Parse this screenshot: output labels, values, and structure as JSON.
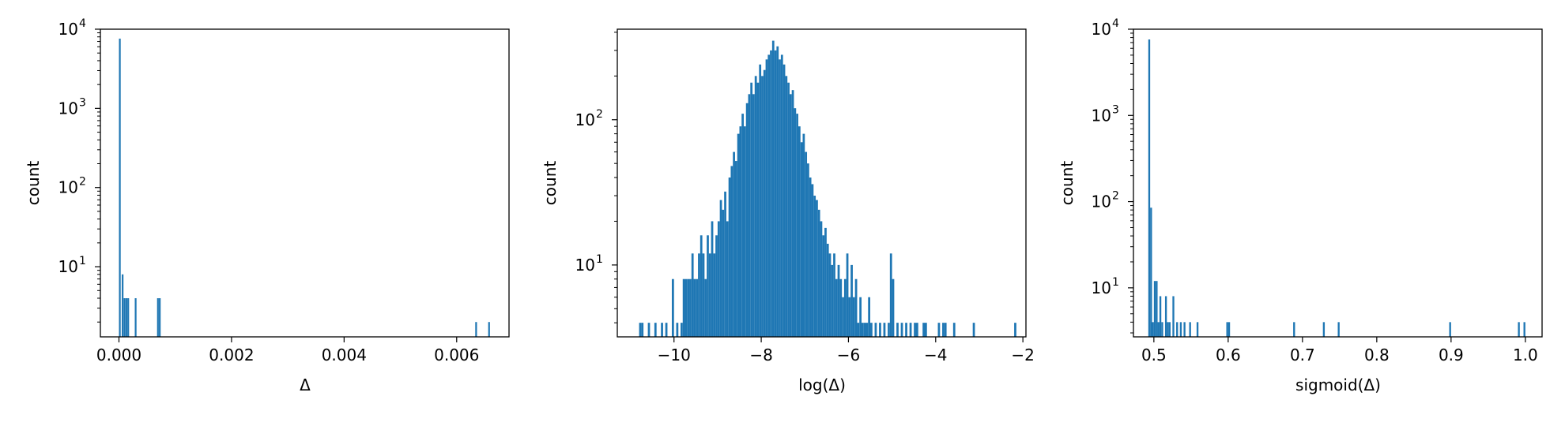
{
  "chart_data": [
    {
      "type": "bar",
      "xlabel": "Δ",
      "ylabel": "count",
      "yscale": "log",
      "xlim": [
        -0.00033,
        0.00693
      ],
      "ylim": [
        1.3,
        10000
      ],
      "xticks": [
        {
          "value": 0.0,
          "label": "0.000"
        },
        {
          "value": 0.002,
          "label": "0.002"
        },
        {
          "value": 0.004,
          "label": "0.004"
        },
        {
          "value": 0.006,
          "label": "0.006"
        }
      ],
      "yticks": [
        {
          "value": 10,
          "base": "10",
          "exp": "1"
        },
        {
          "value": 100,
          "base": "10",
          "exp": "2"
        },
        {
          "value": 1000,
          "base": "10",
          "exp": "3"
        },
        {
          "value": 10000,
          "base": "10",
          "exp": "4"
        }
      ],
      "bins": {
        "x": [
          0.0,
          4.95e-05,
          8.3e-05,
          0.000116,
          0.000149,
          0.000281,
          0.000677,
          0.00071,
          0.00633,
          0.00656
        ],
        "counts": [
          7600,
          8,
          4,
          4,
          4,
          4,
          4,
          4,
          2,
          2
        ]
      },
      "grid": false,
      "color": "#1f77b4"
    },
    {
      "type": "bar",
      "xlabel": "log(Δ)",
      "ylabel": "count",
      "yscale": "log",
      "xlim": [
        -11.3,
        -1.93
      ],
      "ylim": [
        3.2,
        420
      ],
      "xticks": [
        {
          "value": -10,
          "label": "−10"
        },
        {
          "value": -8,
          "label": "−8"
        },
        {
          "value": -6,
          "label": "−6"
        },
        {
          "value": -4,
          "label": "−4"
        },
        {
          "value": -2,
          "label": "−2"
        }
      ],
      "yticks": [
        {
          "value": 10,
          "base": "10",
          "exp": "1"
        },
        {
          "value": 100,
          "base": "10",
          "exp": "2"
        }
      ],
      "bins": {
        "x": [
          -10.8,
          -10.75,
          -10.6,
          -10.45,
          -10.3,
          -10.2,
          -10.05,
          -9.95,
          -9.85,
          -9.8,
          -9.75,
          -9.7,
          -9.65,
          -9.6,
          -9.55,
          -9.5,
          -9.45,
          -9.4,
          -9.35,
          -9.3,
          -9.25,
          -9.2,
          -9.15,
          -9.1,
          -9.05,
          -9.0,
          -8.95,
          -8.9,
          -8.85,
          -8.8,
          -8.75,
          -8.7,
          -8.65,
          -8.6,
          -8.55,
          -8.5,
          -8.45,
          -8.4,
          -8.35,
          -8.3,
          -8.25,
          -8.2,
          -8.15,
          -8.1,
          -8.05,
          -8.0,
          -7.95,
          -7.9,
          -7.85,
          -7.8,
          -7.75,
          -7.7,
          -7.65,
          -7.6,
          -7.55,
          -7.5,
          -7.45,
          -7.4,
          -7.35,
          -7.3,
          -7.25,
          -7.2,
          -7.15,
          -7.1,
          -7.05,
          -7.0,
          -6.95,
          -6.9,
          -6.85,
          -6.8,
          -6.75,
          -6.7,
          -6.65,
          -6.6,
          -6.55,
          -6.5,
          -6.45,
          -6.4,
          -6.35,
          -6.3,
          -6.25,
          -6.2,
          -6.15,
          -6.1,
          -6.05,
          -6.0,
          -5.95,
          -5.9,
          -5.85,
          -5.8,
          -5.75,
          -5.7,
          -5.65,
          -5.6,
          -5.55,
          -5.5,
          -5.4,
          -5.3,
          -5.2,
          -5.1,
          -5.05,
          -5.0,
          -4.9,
          -4.8,
          -4.7,
          -4.6,
          -4.5,
          -4.45,
          -4.3,
          -4.25,
          -3.95,
          -3.85,
          -3.8,
          -3.6,
          -3.15,
          -2.2
        ],
        "counts": [
          4,
          4,
          4,
          4,
          4,
          4,
          8,
          4,
          4,
          8,
          8,
          8,
          8,
          12,
          8,
          8,
          12,
          16,
          12,
          8,
          16,
          12,
          20,
          12,
          16,
          20,
          28,
          24,
          32,
          20,
          40,
          48,
          60,
          52,
          80,
          90,
          110,
          90,
          130,
          150,
          180,
          150,
          200,
          180,
          240,
          200,
          220,
          260,
          280,
          300,
          350,
          300,
          320,
          260,
          280,
          240,
          200,
          180,
          150,
          160,
          120,
          110,
          90,
          70,
          80,
          60,
          50,
          40,
          36,
          30,
          28,
          24,
          20,
          16,
          18,
          14,
          12,
          10,
          12,
          8,
          10,
          8,
          6,
          8,
          12,
          6,
          10,
          6,
          8,
          4,
          6,
          4,
          4,
          4,
          6,
          4,
          4,
          4,
          4,
          4,
          12,
          8,
          4,
          4,
          4,
          4,
          4,
          4,
          4,
          4,
          4,
          4,
          4,
          4,
          4,
          4
        ],
        "width": 0.05
      },
      "grid": false,
      "color": "#1f77b4"
    },
    {
      "type": "bar",
      "xlabel": "sigmoid(Δ)",
      "ylabel": "count",
      "yscale": "log",
      "xlim": [
        0.4725,
        1.0225
      ],
      "ylim": [
        2.7,
        10000
      ],
      "xticks": [
        {
          "value": 0.5,
          "label": "0.5"
        },
        {
          "value": 0.6,
          "label": "0.6"
        },
        {
          "value": 0.7,
          "label": "0.7"
        },
        {
          "value": 0.8,
          "label": "0.8"
        },
        {
          "value": 0.9,
          "label": "0.9"
        },
        {
          "value": 1.0,
          "label": "1.0"
        }
      ],
      "yticks": [
        {
          "value": 10,
          "base": "10",
          "exp": "1"
        },
        {
          "value": 100,
          "base": "10",
          "exp": "2"
        },
        {
          "value": 1000,
          "base": "10",
          "exp": "3"
        },
        {
          "value": 10000,
          "base": "10",
          "exp": "4"
        }
      ],
      "bins": {
        "x": [
          0.4925,
          0.495,
          0.4975,
          0.5,
          0.5025,
          0.505,
          0.5075,
          0.51,
          0.515,
          0.5175,
          0.52,
          0.525,
          0.53,
          0.535,
          0.54,
          0.5475,
          0.5575,
          0.5975,
          0.6,
          0.6875,
          0.7275,
          0.7475,
          0.8975,
          0.99,
          0.9975
        ],
        "counts": [
          7600,
          85,
          4,
          12,
          12,
          4,
          8,
          4,
          8,
          4,
          4,
          8,
          4,
          4,
          4,
          4,
          4,
          4,
          4,
          4,
          4,
          4,
          4,
          4,
          4
        ],
        "width": 0.0025
      },
      "grid": false,
      "color": "#1f77b4"
    }
  ]
}
